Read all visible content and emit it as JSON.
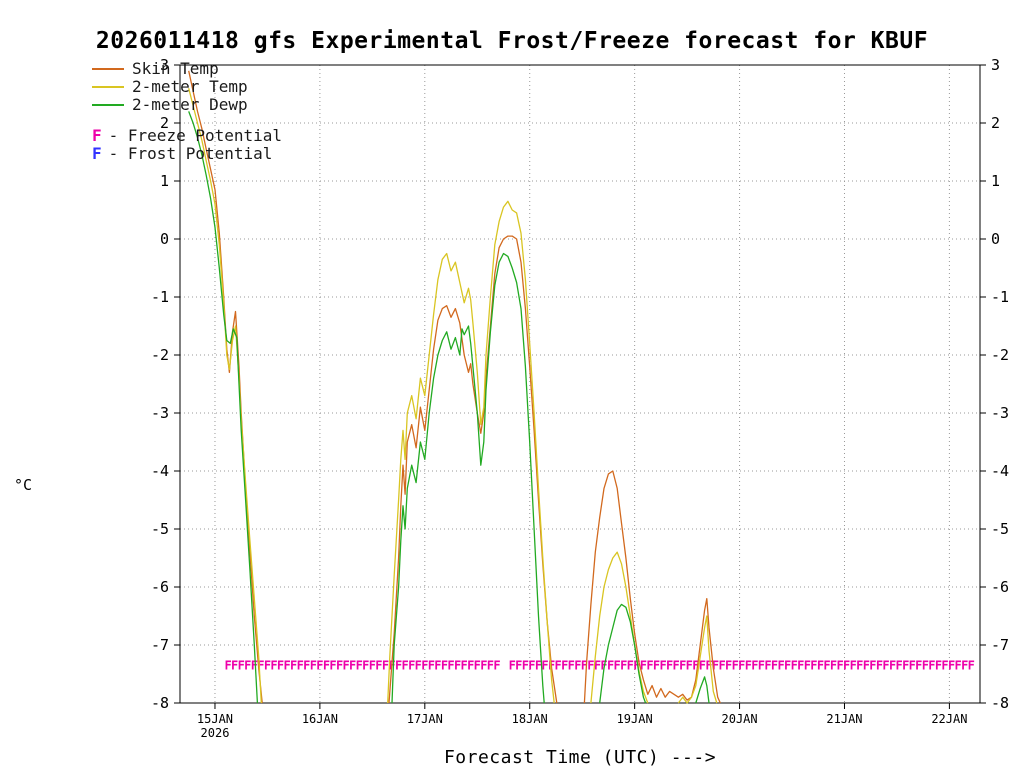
{
  "chart_data": {
    "type": "line",
    "title": "2026011418 gfs Experimental Frost/Freeze forecast for KBUF",
    "xlabel": "Forecast Time (UTC) --->",
    "ylabel": "°C",
    "ylim": [
      -8,
      3
    ],
    "xlim_hours": [
      -2,
      181
    ],
    "y_ticks": [
      3,
      2,
      1,
      0,
      -1,
      -2,
      -3,
      -4,
      -5,
      -6,
      -7,
      -8
    ],
    "x_ticks": [
      {
        "hour": 6,
        "label": "15JAN",
        "sub": "2026"
      },
      {
        "hour": 30,
        "label": "16JAN"
      },
      {
        "hour": 54,
        "label": "17JAN"
      },
      {
        "hour": 78,
        "label": "18JAN"
      },
      {
        "hour": 102,
        "label": "19JAN"
      },
      {
        "hour": 126,
        "label": "20JAN"
      },
      {
        "hour": 150,
        "label": "21JAN"
      },
      {
        "hour": 174,
        "label": "22JAN"
      }
    ],
    "grid": {
      "color": "#999999",
      "style": "dotted"
    },
    "axis_color": "#000000",
    "series": [
      {
        "name": "Skin Temp",
        "color": "#d2691e",
        "points": [
          [
            0,
            2.9
          ],
          [
            1,
            2.55
          ],
          [
            2,
            2.2
          ],
          [
            3,
            1.9
          ],
          [
            4,
            1.55
          ],
          [
            5,
            1.2
          ],
          [
            6,
            0.85
          ],
          [
            7,
            0.1
          ],
          [
            8,
            -1.0
          ],
          [
            8.7,
            -1.9
          ],
          [
            9.3,
            -2.3
          ],
          [
            10,
            -1.6
          ],
          [
            10.7,
            -1.25
          ],
          [
            11.5,
            -2.2
          ],
          [
            12,
            -3.0
          ],
          [
            13,
            -4.3
          ],
          [
            14,
            -5.4
          ],
          [
            15,
            -6.5
          ],
          [
            16,
            -7.4
          ],
          [
            16.8,
            -8
          ],
          [
            17,
            null
          ],
          [
            45.8,
            -8
          ],
          [
            46.5,
            -7.3
          ],
          [
            47,
            -6.8
          ],
          [
            48,
            -5.5
          ],
          [
            48.5,
            -4.6
          ],
          [
            49,
            -3.9
          ],
          [
            49.5,
            -4.4
          ],
          [
            50,
            -3.5
          ],
          [
            51,
            -3.2
          ],
          [
            52,
            -3.6
          ],
          [
            53,
            -2.9
          ],
          [
            54,
            -3.3
          ],
          [
            55,
            -2.6
          ],
          [
            56,
            -1.9
          ],
          [
            57,
            -1.4
          ],
          [
            58,
            -1.2
          ],
          [
            59,
            -1.15
          ],
          [
            60,
            -1.35
          ],
          [
            61,
            -1.2
          ],
          [
            62,
            -1.45
          ],
          [
            63,
            -2.0
          ],
          [
            64,
            -2.3
          ],
          [
            64.5,
            -2.15
          ],
          [
            65,
            -2.5
          ],
          [
            66,
            -3.0
          ],
          [
            66.8,
            -3.35
          ],
          [
            67.5,
            -3.0
          ],
          [
            68,
            -2.4
          ],
          [
            69,
            -1.5
          ],
          [
            70,
            -0.6
          ],
          [
            71,
            -0.15
          ],
          [
            72,
            0.0
          ],
          [
            73,
            0.05
          ],
          [
            74,
            0.05
          ],
          [
            75,
            0.0
          ],
          [
            76,
            -0.4
          ],
          [
            77,
            -1.2
          ],
          [
            78,
            -2.2
          ],
          [
            79,
            -3.3
          ],
          [
            80,
            -4.5
          ],
          [
            81,
            -5.6
          ],
          [
            82,
            -6.6
          ],
          [
            83,
            -7.4
          ],
          [
            84.2,
            -8
          ],
          [
            85,
            null
          ],
          [
            90.5,
            -8
          ],
          [
            91,
            -7.3
          ],
          [
            92,
            -6.3
          ],
          [
            93,
            -5.4
          ],
          [
            94,
            -4.8
          ],
          [
            95,
            -4.3
          ],
          [
            96,
            -4.05
          ],
          [
            97,
            -4.0
          ],
          [
            98,
            -4.3
          ],
          [
            99,
            -4.9
          ],
          [
            100,
            -5.5
          ],
          [
            101,
            -6.2
          ],
          [
            102,
            -6.8
          ],
          [
            103,
            -7.3
          ],
          [
            104,
            -7.6
          ],
          [
            105,
            -7.85
          ],
          [
            106,
            -7.7
          ],
          [
            107,
            -7.9
          ],
          [
            108,
            -7.75
          ],
          [
            109,
            -7.9
          ],
          [
            110,
            -7.8
          ],
          [
            112,
            -7.9
          ],
          [
            113,
            -7.85
          ],
          [
            114,
            -7.95
          ],
          [
            115,
            -7.9
          ],
          [
            116,
            -7.6
          ],
          [
            117,
            -7.0
          ],
          [
            118,
            -6.4
          ],
          [
            118.5,
            -6.2
          ],
          [
            119,
            -6.7
          ],
          [
            120,
            -7.4
          ],
          [
            121,
            -7.9
          ],
          [
            121.6,
            -8
          ],
          [
            122,
            null
          ]
        ]
      },
      {
        "name": "2-meter Temp",
        "color": "#d9c522",
        "points": [
          [
            0,
            2.6
          ],
          [
            1,
            2.3
          ],
          [
            2,
            2.0
          ],
          [
            3,
            1.7
          ],
          [
            4,
            1.35
          ],
          [
            5,
            1.0
          ],
          [
            6,
            0.6
          ],
          [
            7,
            -0.1
          ],
          [
            8,
            -1.1
          ],
          [
            8.7,
            -2.0
          ],
          [
            9.3,
            -2.25
          ],
          [
            10,
            -1.75
          ],
          [
            10.7,
            -1.5
          ],
          [
            11.5,
            -2.4
          ],
          [
            12,
            -3.1
          ],
          [
            13,
            -4.2
          ],
          [
            14,
            -5.2
          ],
          [
            15,
            -6.2
          ],
          [
            16,
            -7.2
          ],
          [
            16.6,
            -8
          ],
          [
            17,
            null
          ],
          [
            45.5,
            -8
          ],
          [
            46,
            -7.2
          ],
          [
            47,
            -5.8
          ],
          [
            48,
            -4.5
          ],
          [
            48.5,
            -3.8
          ],
          [
            49,
            -3.3
          ],
          [
            49.5,
            -3.8
          ],
          [
            50,
            -3.0
          ],
          [
            51,
            -2.7
          ],
          [
            52,
            -3.1
          ],
          [
            53,
            -2.4
          ],
          [
            54,
            -2.7
          ],
          [
            55,
            -2.0
          ],
          [
            56,
            -1.3
          ],
          [
            57,
            -0.7
          ],
          [
            58,
            -0.35
          ],
          [
            59,
            -0.25
          ],
          [
            60,
            -0.55
          ],
          [
            61,
            -0.4
          ],
          [
            62,
            -0.75
          ],
          [
            63,
            -1.1
          ],
          [
            64,
            -0.85
          ],
          [
            64.5,
            -1.05
          ],
          [
            65,
            -1.45
          ],
          [
            66,
            -2.3
          ],
          [
            66.8,
            -3.2
          ],
          [
            67.5,
            -2.9
          ],
          [
            68,
            -2.0
          ],
          [
            69,
            -1.0
          ],
          [
            70,
            -0.1
          ],
          [
            71,
            0.3
          ],
          [
            72,
            0.55
          ],
          [
            73,
            0.65
          ],
          [
            74,
            0.5
          ],
          [
            75,
            0.45
          ],
          [
            76,
            0.1
          ],
          [
            77,
            -0.7
          ],
          [
            78,
            -1.8
          ],
          [
            79,
            -3.0
          ],
          [
            80,
            -4.3
          ],
          [
            81,
            -5.5
          ],
          [
            82,
            -6.6
          ],
          [
            83,
            -7.6
          ],
          [
            83.6,
            -8
          ],
          [
            84,
            null
          ],
          [
            92,
            -8
          ],
          [
            93,
            -7.2
          ],
          [
            94,
            -6.5
          ],
          [
            95,
            -6.0
          ],
          [
            96,
            -5.7
          ],
          [
            97,
            -5.5
          ],
          [
            98,
            -5.4
          ],
          [
            99,
            -5.6
          ],
          [
            100,
            -6.0
          ],
          [
            101,
            -6.5
          ],
          [
            102,
            -7.0
          ],
          [
            103,
            -7.45
          ],
          [
            104,
            -7.8
          ],
          [
            105,
            -8
          ],
          [
            106,
            null
          ],
          [
            112,
            -8
          ],
          [
            113,
            -7.9
          ],
          [
            114,
            -8.0
          ],
          [
            115,
            -7.9
          ],
          [
            116,
            -7.7
          ],
          [
            117,
            -7.2
          ],
          [
            118,
            -6.7
          ],
          [
            118.5,
            -6.5
          ],
          [
            119,
            -7.1
          ],
          [
            120,
            -7.8
          ],
          [
            120.8,
            -8
          ],
          [
            121,
            null
          ]
        ]
      },
      {
        "name": "2-meter Dewp",
        "color": "#22aa22",
        "points": [
          [
            0,
            2.2
          ],
          [
            1,
            2.0
          ],
          [
            2,
            1.75
          ],
          [
            3,
            1.45
          ],
          [
            4,
            1.1
          ],
          [
            5,
            0.7
          ],
          [
            6,
            0.2
          ],
          [
            7,
            -0.5
          ],
          [
            8,
            -1.3
          ],
          [
            8.7,
            -1.75
          ],
          [
            9.5,
            -1.8
          ],
          [
            10.2,
            -1.55
          ],
          [
            11,
            -1.7
          ],
          [
            11.5,
            -2.5
          ],
          [
            12,
            -3.3
          ],
          [
            13,
            -4.5
          ],
          [
            14,
            -5.7
          ],
          [
            15,
            -7.0
          ],
          [
            15.7,
            -8
          ],
          [
            16,
            null
          ],
          [
            46.5,
            -8
          ],
          [
            47,
            -7.0
          ],
          [
            48,
            -6.0
          ],
          [
            48.5,
            -5.2
          ],
          [
            49,
            -4.6
          ],
          [
            49.5,
            -5.0
          ],
          [
            50,
            -4.3
          ],
          [
            51,
            -3.9
          ],
          [
            52,
            -4.2
          ],
          [
            53,
            -3.5
          ],
          [
            54,
            -3.8
          ],
          [
            55,
            -3.0
          ],
          [
            56,
            -2.4
          ],
          [
            57,
            -2.0
          ],
          [
            58,
            -1.75
          ],
          [
            59,
            -1.6
          ],
          [
            60,
            -1.9
          ],
          [
            61,
            -1.7
          ],
          [
            62,
            -2.0
          ],
          [
            62.5,
            -1.55
          ],
          [
            63,
            -1.65
          ],
          [
            64,
            -1.5
          ],
          [
            64.5,
            -1.8
          ],
          [
            65,
            -2.2
          ],
          [
            66,
            -3.0
          ],
          [
            66.8,
            -3.9
          ],
          [
            67.5,
            -3.5
          ],
          [
            68,
            -2.6
          ],
          [
            69,
            -1.6
          ],
          [
            70,
            -0.8
          ],
          [
            71,
            -0.4
          ],
          [
            72,
            -0.25
          ],
          [
            73,
            -0.3
          ],
          [
            74,
            -0.5
          ],
          [
            75,
            -0.75
          ],
          [
            76,
            -1.2
          ],
          [
            77,
            -2.2
          ],
          [
            78,
            -3.5
          ],
          [
            79,
            -5.0
          ],
          [
            80,
            -6.5
          ],
          [
            81,
            -7.7
          ],
          [
            81.3,
            -8
          ],
          [
            82,
            null
          ],
          [
            94,
            -8
          ],
          [
            95,
            -7.4
          ],
          [
            96,
            -7.0
          ],
          [
            97,
            -6.7
          ],
          [
            98,
            -6.4
          ],
          [
            99,
            -6.3
          ],
          [
            100,
            -6.35
          ],
          [
            101,
            -6.6
          ],
          [
            102,
            -7.0
          ],
          [
            103,
            -7.5
          ],
          [
            104,
            -7.9
          ],
          [
            104.5,
            -8
          ],
          [
            105,
            null
          ],
          [
            116,
            -8
          ],
          [
            117,
            -7.75
          ],
          [
            118,
            -7.55
          ],
          [
            118.5,
            -7.7
          ],
          [
            119,
            -8
          ],
          [
            119.5,
            null
          ]
        ]
      }
    ],
    "freeze_marker": {
      "symbol": "F",
      "label": "- Freeze Potential",
      "color": "#ee00aa",
      "value": -7.35,
      "segments_hours": [
        [
          9,
          71
        ],
        [
          74,
          180
        ]
      ],
      "spacing_hours": 1.5
    },
    "frost_marker": {
      "symbol": "F",
      "label": "- Frost Potential",
      "color": "#3333ff",
      "value": -7.35,
      "segments_hours": [],
      "spacing_hours": 1.5
    }
  }
}
